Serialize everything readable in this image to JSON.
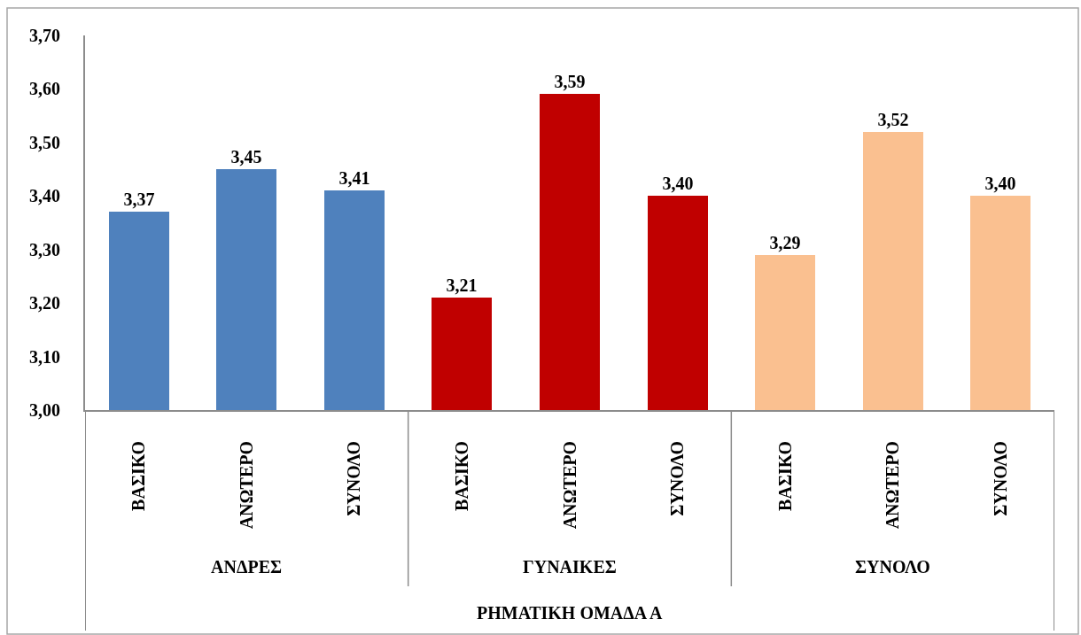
{
  "chart_data": {
    "type": "bar",
    "xlabel": "ΡΗΜΑΤΙΚΗ ΟΜΑΔΑ Α",
    "categories": [
      "ΒΑΣΙΚΟ",
      "ΑΝΩΤΕΡΟ",
      "ΣΥΝΟΛΟ",
      "ΒΑΣΙΚΟ",
      "ΑΝΩΤΕΡΟ",
      "ΣΥΝΟΛΟ",
      "ΒΑΣΙΚΟ",
      "ΑΝΩΤΕΡΟ",
      "ΣΥΝΟΛΟ"
    ],
    "series": [
      {
        "name": "ΑΝΔΡΕΣ",
        "color": "#4f81bd",
        "values": [
          3.37,
          3.45,
          3.41,
          null,
          null,
          null,
          null,
          null,
          null
        ],
        "value_labels": [
          "3,37",
          "3,45",
          "3,41",
          null,
          null,
          null,
          null,
          null,
          null
        ]
      },
      {
        "name": "ΓΥΝΑΙΚΕΣ",
        "color": "#c00000",
        "values": [
          null,
          null,
          null,
          3.21,
          3.59,
          3.4,
          null,
          null,
          null
        ],
        "value_labels": [
          null,
          null,
          null,
          "3,21",
          "3,59",
          "3,40",
          null,
          null,
          null
        ]
      },
      {
        "name": "ΣΥΝΟΛΟ",
        "color": "#fac090",
        "values": [
          null,
          null,
          null,
          null,
          null,
          null,
          3.29,
          3.52,
          3.4
        ],
        "value_labels": [
          null,
          null,
          null,
          null,
          null,
          null,
          "3,29",
          "3,52",
          "3,40"
        ]
      }
    ],
    "ylim": [
      3.0,
      3.7
    ],
    "yticks": [
      {
        "value": 3.0,
        "label": "3,00"
      },
      {
        "value": 3.1,
        "label": "3,10"
      },
      {
        "value": 3.2,
        "label": "3,20"
      },
      {
        "value": 3.3,
        "label": "3,30"
      },
      {
        "value": 3.4,
        "label": "3,40"
      },
      {
        "value": 3.5,
        "label": "3,50"
      },
      {
        "value": 3.6,
        "label": "3,60"
      },
      {
        "value": 3.7,
        "label": "3,70"
      }
    ]
  }
}
